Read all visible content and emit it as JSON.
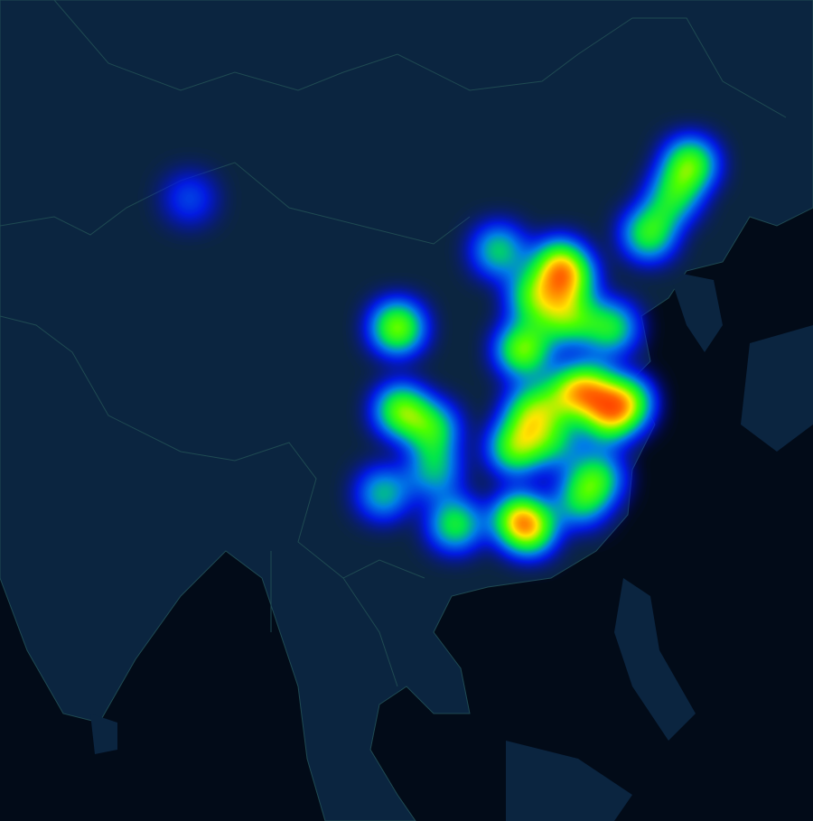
{
  "map_data": {
    "type": "heatmap",
    "points": [
      {
        "lon": 87.6,
        "lat": 43.8,
        "intensity": 0.3
      },
      {
        "lon": 126.6,
        "lat": 45.7,
        "intensity": 0.85
      },
      {
        "lon": 125.3,
        "lat": 43.9,
        "intensity": 0.65
      },
      {
        "lon": 123.4,
        "lat": 41.8,
        "intensity": 0.75
      },
      {
        "lon": 116.4,
        "lat": 39.9,
        "intensity": 0.95
      },
      {
        "lon": 117.2,
        "lat": 39.1,
        "intensity": 0.8
      },
      {
        "lon": 111.7,
        "lat": 40.8,
        "intensity": 0.6
      },
      {
        "lon": 103.8,
        "lat": 36.1,
        "intensity": 0.9
      },
      {
        "lon": 104.1,
        "lat": 30.7,
        "intensity": 0.85
      },
      {
        "lon": 102.7,
        "lat": 25.0,
        "intensity": 0.55
      },
      {
        "lon": 114.5,
        "lat": 38.0,
        "intensity": 0.8
      },
      {
        "lon": 117.0,
        "lat": 36.7,
        "intensity": 0.8
      },
      {
        "lon": 120.4,
        "lat": 36.1,
        "intensity": 0.7
      },
      {
        "lon": 113.6,
        "lat": 34.7,
        "intensity": 0.9
      },
      {
        "lon": 114.3,
        "lat": 30.6,
        "intensity": 0.85
      },
      {
        "lon": 117.3,
        "lat": 31.9,
        "intensity": 0.8
      },
      {
        "lon": 118.8,
        "lat": 32.1,
        "intensity": 0.9
      },
      {
        "lon": 121.5,
        "lat": 31.2,
        "intensity": 1.0
      },
      {
        "lon": 120.2,
        "lat": 30.3,
        "intensity": 0.9
      },
      {
        "lon": 113.0,
        "lat": 28.2,
        "intensity": 0.85
      },
      {
        "lon": 115.9,
        "lat": 28.7,
        "intensity": 0.6
      },
      {
        "lon": 106.5,
        "lat": 29.5,
        "intensity": 0.7
      },
      {
        "lon": 106.7,
        "lat": 26.6,
        "intensity": 0.55
      },
      {
        "lon": 108.3,
        "lat": 22.8,
        "intensity": 0.7
      },
      {
        "lon": 113.3,
        "lat": 23.1,
        "intensity": 0.95
      },
      {
        "lon": 114.1,
        "lat": 22.5,
        "intensity": 0.9
      },
      {
        "lon": 119.3,
        "lat": 26.1,
        "intensity": 0.7
      },
      {
        "lon": 118.1,
        "lat": 24.5,
        "intensity": 0.6
      }
    ]
  }
}
